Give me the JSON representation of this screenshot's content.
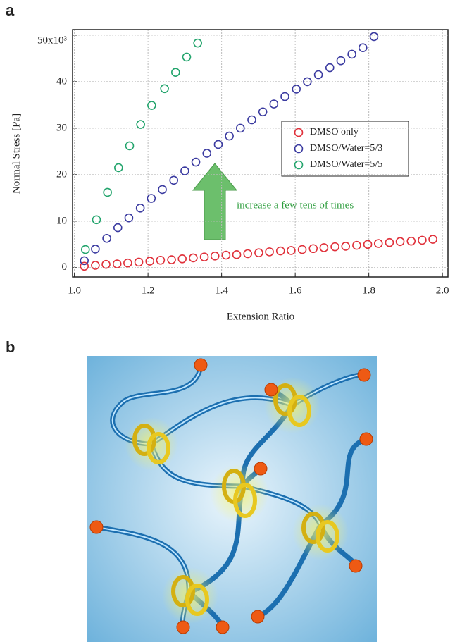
{
  "panel_labels": [
    "a",
    "b"
  ],
  "chart_data": {
    "type": "scatter",
    "xlabel": "Extension Ratio",
    "ylabel": "Normal Stress [Pa]",
    "xlim": [
      0.995,
      2.015
    ],
    "ylim": [
      -2,
      51.2
    ],
    "xticks": [
      {
        "value": 1.0,
        "label": "1.0"
      },
      1.2,
      1.4,
      1.6,
      1.8,
      {
        "value": 2.0,
        "label": "2.0"
      }
    ],
    "yticks": [
      0,
      10,
      20,
      30,
      40,
      {
        "value": 50,
        "label": "50x10³"
      }
    ],
    "grid": true,
    "legend": "right",
    "annotation": "increase a few tens of times",
    "series": [
      {
        "name": "DMSO only",
        "color": "#e0303a",
        "x": [
          1.027,
          1.057,
          1.086,
          1.116,
          1.145,
          1.175,
          1.205,
          1.234,
          1.264,
          1.293,
          1.323,
          1.353,
          1.382,
          1.412,
          1.441,
          1.471,
          1.501,
          1.53,
          1.56,
          1.589,
          1.619,
          1.649,
          1.678,
          1.708,
          1.737,
          1.767,
          1.797,
          1.826,
          1.856,
          1.885,
          1.915,
          1.945,
          1.974
        ],
        "values": [
          0.3,
          0.5,
          0.7,
          0.8,
          1.0,
          1.2,
          1.4,
          1.6,
          1.7,
          1.9,
          2.1,
          2.3,
          2.5,
          2.7,
          2.8,
          3.0,
          3.2,
          3.4,
          3.6,
          3.7,
          3.9,
          4.1,
          4.3,
          4.5,
          4.6,
          4.8,
          5.0,
          5.2,
          5.4,
          5.6,
          5.7,
          5.9,
          6.1
        ]
      },
      {
        "name": "DMSO/Water=5/3",
        "color": "#3a3aa0",
        "x": [
          1.027,
          1.057,
          1.088,
          1.118,
          1.148,
          1.179,
          1.209,
          1.239,
          1.27,
          1.3,
          1.33,
          1.36,
          1.391,
          1.421,
          1.451,
          1.482,
          1.512,
          1.542,
          1.572,
          1.603,
          1.633,
          1.663,
          1.694,
          1.724,
          1.754,
          1.784,
          1.814
        ],
        "values": [
          1.5,
          4.0,
          6.3,
          8.6,
          10.7,
          12.8,
          14.9,
          16.8,
          18.8,
          20.8,
          22.7,
          24.6,
          26.5,
          28.3,
          30.0,
          31.8,
          33.5,
          35.2,
          36.8,
          38.4,
          40.0,
          41.5,
          43.0,
          44.5,
          45.9,
          47.3,
          49.7
        ]
      },
      {
        "name": "DMSO/Water=5/5",
        "color": "#22a46c",
        "x": [
          1.03,
          1.06,
          1.09,
          1.12,
          1.15,
          1.18,
          1.21,
          1.245,
          1.275,
          1.305,
          1.335
        ],
        "values": [
          3.9,
          10.3,
          16.2,
          21.5,
          26.2,
          30.8,
          34.9,
          38.5,
          42.0,
          45.3,
          48.3
        ]
      }
    ]
  }
}
